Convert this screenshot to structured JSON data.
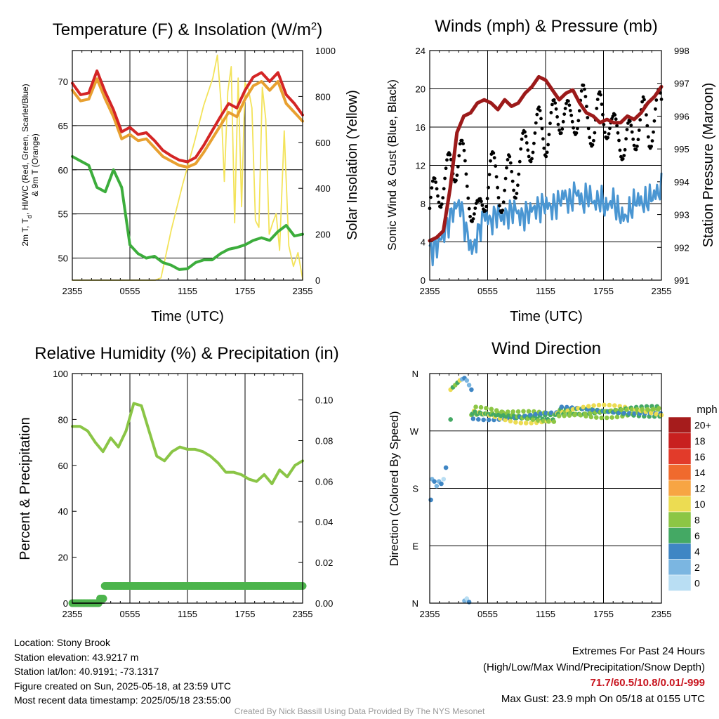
{
  "panels": {
    "temperature": {
      "title": "Temperature (F) & Insolation (W/m",
      "title_sup": "2",
      "title_end": ")",
      "ylabel_line1": "2m T, T",
      "ylabel_sub": "d",
      "ylabel_line1_end": ", HI/WC (Red, Green, Scarlet/Blue)",
      "ylabel_line2": "& 9m T (Orange)",
      "y2label": "Solar Insolation (Yellow)",
      "xlabel": "Time (UTC)"
    },
    "wind": {
      "title": "Winds (mph) & Pressure (mb)",
      "ylabel": "Sonic Wind & Gust (Blue, Black)",
      "y2label": "Station Pressure (Maroon)",
      "xlabel": "Time (UTC)"
    },
    "humidity": {
      "title": "Relative Humidity (%) & Precipitation (in)",
      "ylabel": "Percent & Precipitation"
    },
    "direction": {
      "title": "Wind Direction",
      "ylabel": "Direction (Colored By Speed)",
      "colorbar_title": "mph",
      "colorbar_labels": [
        "20+",
        "18",
        "16",
        "14",
        "12",
        "10",
        "8",
        "6",
        "4",
        "2",
        "0"
      ],
      "colorbar_colors": [
        "#a61c1c",
        "#c8201f",
        "#e23b2a",
        "#f06a2d",
        "#f7a543",
        "#ecdc52",
        "#8cc645",
        "#44a964",
        "#3f86c4",
        "#7bb6e1",
        "#b9def3"
      ]
    }
  },
  "chart_data": [
    {
      "type": "line",
      "panel": "temperature",
      "x_ticks": [
        "2355",
        "0555",
        "1155",
        "1755",
        "2355"
      ],
      "ylim": [
        47.5,
        73.5
      ],
      "y_ticks": [
        50,
        55,
        60,
        65,
        70
      ],
      "y2lim": [
        0,
        1000
      ],
      "y2_ticks": [
        0,
        200,
        400,
        600,
        800,
        1000
      ],
      "series": [
        {
          "color": "#e8a030",
          "axis": "y",
          "offset": -0.5,
          "values": [
            69.5,
            68.3,
            68.5,
            70.8,
            68.5,
            66.5,
            64,
            64.5,
            63.8,
            64,
            63,
            62,
            61.5,
            61,
            60.8,
            61.2,
            62.5,
            64,
            65.5,
            67,
            66.5,
            68.5,
            70,
            70.5,
            69.5,
            70.5,
            68,
            67,
            66
          ]
        },
        {
          "color": "#d42525",
          "axis": "y",
          "offset": 0,
          "values": [
            69.8,
            68.5,
            68.7,
            71.2,
            68.8,
            66.8,
            64.3,
            64.8,
            64,
            64.2,
            63.3,
            62.2,
            61.6,
            61.1,
            60.9,
            61.4,
            62.8,
            64.4,
            66,
            67.5,
            67,
            69,
            70.5,
            71,
            70,
            71,
            68.5,
            67.5,
            66.2
          ]
        },
        {
          "color": "#3cad3c",
          "axis": "y",
          "offset": 0,
          "values": [
            61.5,
            61,
            60.5,
            58,
            57.5,
            60,
            58,
            51.5,
            50.5,
            50,
            50.2,
            49.5,
            49.2,
            48.7,
            48.8,
            49.5,
            49.8,
            49.8,
            50.5,
            51,
            51.2,
            51.5,
            52,
            52.3,
            52,
            53,
            53.7,
            52.5,
            52.7
          ]
        },
        {
          "color": "#f3e35a",
          "axis": "y2",
          "x": [
            0,
            0.07,
            0.14,
            0.22,
            0.3,
            0.36,
            0.385,
            0.43,
            0.48,
            0.53,
            0.57,
            0.61,
            0.63,
            0.645,
            0.66,
            0.675,
            0.69,
            0.705,
            0.72,
            0.735,
            0.75,
            0.765,
            0.78,
            0.795,
            0.81,
            0.825,
            0.84,
            0.855,
            0.87,
            0.885,
            0.9,
            0.92,
            0.94,
            0.96,
            0.98,
            1.0
          ],
          "values": [
            0,
            0,
            0,
            0,
            0,
            0,
            10,
            220,
            420,
            600,
            760,
            880,
            980,
            780,
            430,
            820,
            930,
            250,
            880,
            320,
            860,
            830,
            750,
            260,
            230,
            840,
            700,
            200,
            250,
            290,
            130,
            650,
            150,
            60,
            120,
            5
          ]
        }
      ]
    },
    {
      "type": "scatter",
      "panel": "wind",
      "x_ticks": [
        "2355",
        "0555",
        "1155",
        "1755",
        "2355"
      ],
      "ylim": [
        0,
        24
      ],
      "y_ticks": [
        0,
        4,
        8,
        12,
        16,
        20,
        24
      ],
      "y2lim": [
        991,
        998
      ],
      "y2_ticks": [
        991,
        992,
        993,
        994,
        995,
        996,
        997,
        998
      ],
      "series": [
        {
          "color": "#4a96d2",
          "type": "line",
          "values": [
            3,
            3.5,
            4.5,
            6,
            7.5,
            8,
            5,
            3,
            5,
            7,
            6,
            7,
            6.5,
            7,
            7.5,
            6.5,
            7,
            7.5,
            7.5,
            8,
            7.5,
            8,
            9,
            8,
            9.5,
            8,
            9,
            8,
            8.5,
            7.5,
            8.5,
            7,
            6.5,
            7.5,
            8.5,
            8,
            8.5,
            9,
            9.5
          ]
        },
        {
          "color": "#000000",
          "type": "scatter",
          "values": [
            7.5,
            9,
            10,
            11,
            12,
            14,
            10,
            8,
            6,
            9,
            12,
            10,
            9,
            11,
            10.5,
            13,
            14,
            15,
            16,
            15,
            16.5,
            17,
            18,
            16,
            17.5,
            18.5,
            17,
            15.5,
            18,
            17,
            15,
            16,
            13.5,
            15,
            16,
            17,
            15.5,
            17.5,
            18
          ]
        },
        {
          "color": "#9c1a1a",
          "type": "line",
          "axis": "y2",
          "values": [
            992.2,
            992.3,
            992.5,
            993.8,
            995.5,
            996,
            996.1,
            996.4,
            996.5,
            996.4,
            996.2,
            996.5,
            996.3,
            996.4,
            996.7,
            996.9,
            997.2,
            997.1,
            996.8,
            996.5,
            996.7,
            996.8,
            996.4,
            996.1,
            996,
            995.8,
            995.9,
            995.8,
            995.8,
            996,
            995.9,
            996.1,
            996.4,
            996.6,
            996.9
          ]
        }
      ]
    },
    {
      "type": "line",
      "panel": "humidity",
      "x_ticks": [
        "2355",
        "0555",
        "1155",
        "1755",
        "2355"
      ],
      "ylim": [
        0,
        100
      ],
      "y_ticks": [
        0,
        20,
        40,
        60,
        80,
        100
      ],
      "y2lim": [
        0,
        0.113
      ],
      "y2_ticks": [
        "0.00",
        "0.02",
        "0.04",
        "0.06",
        "0.08",
        "0.10"
      ],
      "series": [
        {
          "color": "#8ac546",
          "type": "line",
          "values": [
            77,
            77,
            75,
            70,
            66,
            72,
            68,
            75,
            87,
            86,
            75,
            64,
            62,
            66,
            68,
            67,
            67,
            66,
            64,
            61,
            57,
            57,
            56,
            54,
            53,
            56,
            52,
            58,
            55,
            60,
            62
          ]
        },
        {
          "color": "#4cb44c",
          "type": "scatter",
          "x": [
            0,
            0.02,
            0.05,
            0.09,
            0.12,
            0.14,
            0.145,
            0.15,
            1.0
          ],
          "values": [
            0,
            0,
            0,
            0,
            0,
            2,
            4,
            7.5,
            7.5
          ]
        }
      ]
    },
    {
      "type": "scatter",
      "panel": "direction",
      "x_ticks": [
        "2355",
        "0555",
        "1155",
        "1755",
        "2355"
      ],
      "y_ticks": [
        "N",
        "W",
        "S",
        "E",
        "N"
      ],
      "ylim": [
        360,
        0
      ]
    }
  ],
  "info_left": [
    "Location: Stony Brook",
    "Station elevation: 43.9217 m",
    "Station lat/lon: 40.9191; -73.1317",
    "Figure created on Sun, 2025-05-18, at 23:59 UTC",
    "Most recent data timestamp: 2025/05/18 23:55:00"
  ],
  "extremes": {
    "title": "Extremes For Past 24 Hours",
    "subtitle": "(High/Low/Max Wind/Precipitation/Snow Depth)",
    "values": "71.7/60.5/10.8/0.01/-999",
    "max_gust": "Max Gust: 23.9 mph On 05/18 at 0155 UTC"
  },
  "credit": "Created By Nick Bassill Using Data Provided By The NYS Mesonet"
}
